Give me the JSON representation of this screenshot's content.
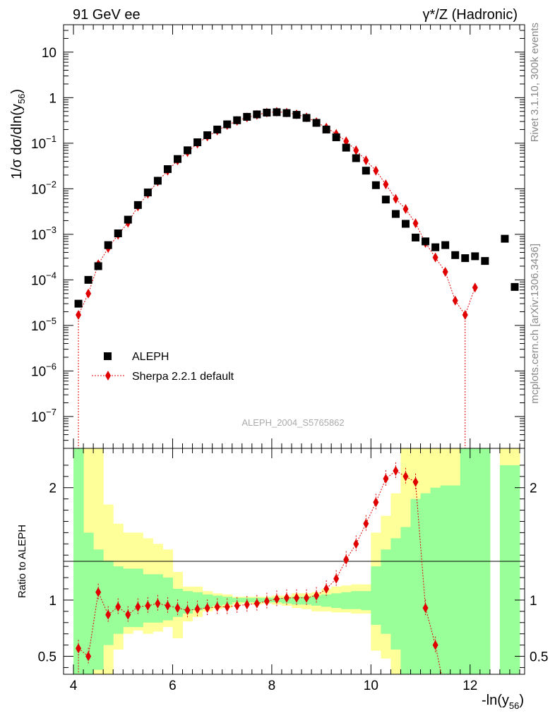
{
  "header": {
    "left": "91 GeV ee",
    "right": "γ*/Z (Hadronic)"
  },
  "side": {
    "rivet": "Rivet 3.1.10,  300k events",
    "mcplots": "mcplots.cern.ch [arXiv:1306.3436]"
  },
  "watermark": "ALEPH_2004_S5765862",
  "legend": {
    "data_label": "ALEPH",
    "mc_label": "Sherpa 2.2.1 default"
  },
  "colors": {
    "data": "#000000",
    "mc": "#e00000",
    "band_green": "#99ff99",
    "band_yellow": "#ffff99"
  },
  "chart_data": [
    {
      "type": "scatter",
      "ylabel_main": "1/σ  dσ/dln(y",
      "ylabel_sub": "56",
      "ylabel_end": ")",
      "yscale": "log",
      "xlim": [
        3.8,
        13.1
      ],
      "ylim": [
        2e-08,
        40
      ],
      "yticks": [
        {
          "value": 10,
          "label": "10"
        },
        {
          "value": 1,
          "label": "1"
        },
        {
          "value": 0.1,
          "label": "10",
          "exp": "−1"
        },
        {
          "value": 0.01,
          "label": "10",
          "exp": "−2"
        },
        {
          "value": 0.001,
          "label": "10",
          "exp": "−3"
        },
        {
          "value": 0.0001,
          "label": "10",
          "exp": "−4"
        },
        {
          "value": 1e-05,
          "label": "10",
          "exp": "−5"
        },
        {
          "value": 1e-06,
          "label": "10",
          "exp": "−6"
        },
        {
          "value": 1e-07,
          "label": "10",
          "exp": "−7"
        }
      ],
      "series": [
        {
          "name": "ALEPH",
          "x": [
            4.1,
            4.3,
            4.5,
            4.7,
            4.9,
            5.1,
            5.3,
            5.5,
            5.7,
            5.9,
            6.1,
            6.3,
            6.5,
            6.7,
            6.9,
            7.1,
            7.3,
            7.5,
            7.7,
            7.9,
            8.1,
            8.3,
            8.5,
            8.7,
            8.9,
            9.1,
            9.3,
            9.5,
            9.7,
            9.9,
            10.1,
            10.3,
            10.5,
            10.7,
            10.9,
            11.1,
            11.3,
            11.5,
            11.7,
            11.9,
            12.1,
            12.3,
            12.7,
            12.9
          ],
          "y": [
            3e-05,
            0.0001,
            0.0002,
            0.00058,
            0.00105,
            0.0021,
            0.0044,
            0.0083,
            0.015,
            0.027,
            0.045,
            0.07,
            0.105,
            0.15,
            0.2,
            0.26,
            0.32,
            0.38,
            0.43,
            0.47,
            0.48,
            0.46,
            0.42,
            0.36,
            0.28,
            0.2,
            0.135,
            0.08,
            0.047,
            0.025,
            0.012,
            0.0058,
            0.0028,
            0.0017,
            0.00085,
            0.0007,
            0.00052,
            0.00058,
            0.00035,
            0.0003,
            0.00033,
            0.00026,
            0.0008,
            7e-05
          ]
        },
        {
          "name": "Sherpa 2.2.1 default",
          "x": [
            4.1,
            4.3,
            4.5,
            4.7,
            4.9,
            5.1,
            5.3,
            5.5,
            5.7,
            5.9,
            6.1,
            6.3,
            6.5,
            6.7,
            6.9,
            7.1,
            7.3,
            7.5,
            7.7,
            7.9,
            8.1,
            8.3,
            8.5,
            8.7,
            8.9,
            9.1,
            9.3,
            9.5,
            9.7,
            9.9,
            10.1,
            10.3,
            10.5,
            10.7,
            10.9,
            11.1,
            11.3,
            11.5,
            11.7,
            11.9,
            12.1
          ],
          "y": [
            1.7e-05,
            5e-05,
            0.00022,
            0.0005,
            0.00098,
            0.0018,
            0.0041,
            0.0078,
            0.0145,
            0.025,
            0.042,
            0.064,
            0.098,
            0.14,
            0.19,
            0.25,
            0.31,
            0.37,
            0.42,
            0.47,
            0.49,
            0.47,
            0.43,
            0.37,
            0.29,
            0.22,
            0.16,
            0.11,
            0.07,
            0.042,
            0.025,
            0.0125,
            0.006,
            0.0036,
            0.00175,
            0.00065,
            0.00031,
            0.00015,
            3.5e-05,
            1.7e-05,
            6.8e-05
          ]
        }
      ]
    },
    {
      "type": "scatter",
      "xlabel": "-ln(y",
      "xlabel_sub": "56",
      "xlabel_end": ")",
      "ylabel": "Ratio to ALEPH",
      "xlim": [
        3.8,
        13.1
      ],
      "ylim": [
        0.34,
        2.35
      ],
      "xticks": [
        4,
        6,
        8,
        10,
        12
      ],
      "yticks": [
        0.5,
        1,
        2
      ],
      "series": [
        {
          "name": "Sherpa 2.2.1 default",
          "x": [
            4.1,
            4.3,
            4.5,
            4.7,
            4.9,
            5.1,
            5.3,
            5.5,
            5.7,
            5.9,
            6.1,
            6.3,
            6.5,
            6.7,
            6.9,
            7.1,
            7.3,
            7.5,
            7.7,
            7.9,
            8.1,
            8.3,
            8.5,
            8.7,
            8.9,
            9.1,
            9.3,
            9.5,
            9.7,
            9.9,
            10.1,
            10.3,
            10.5,
            10.7,
            10.9,
            11.1,
            11.3
          ],
          "y": [
            0.57,
            0.5,
            1.07,
            0.87,
            0.94,
            0.87,
            0.94,
            0.95,
            0.97,
            0.95,
            0.93,
            0.91,
            0.92,
            0.93,
            0.94,
            0.94,
            0.95,
            0.96,
            0.97,
            0.99,
            1.01,
            1.02,
            1.02,
            1.02,
            1.04,
            1.1,
            1.19,
            1.36,
            1.5,
            1.68,
            1.87,
            2.08,
            2.15,
            2.1,
            2.05,
            0.93,
            0.6
          ]
        }
      ],
      "bands": {
        "edges": [
          4.0,
          4.2,
          4.4,
          4.6,
          4.8,
          5.0,
          5.2,
          5.4,
          5.6,
          5.8,
          6.0,
          6.2,
          6.4,
          6.6,
          6.8,
          7.0,
          7.2,
          7.4,
          7.6,
          7.8,
          8.0,
          8.2,
          8.4,
          8.6,
          8.8,
          9.0,
          9.2,
          9.4,
          9.6,
          9.8,
          10.0,
          10.2,
          10.4,
          10.6,
          10.8,
          11.0,
          11.2,
          11.4,
          11.6,
          11.8,
          12.0,
          12.2,
          12.4,
          12.6,
          12.8,
          13.0
        ],
        "green_lo": [
          0.34,
          0.34,
          0.38,
          0.6,
          0.7,
          0.76,
          0.76,
          0.8,
          0.8,
          0.82,
          0.85,
          0.88,
          0.91,
          0.93,
          0.95,
          0.96,
          0.98,
          0.98,
          0.98,
          0.98,
          0.98,
          0.97,
          0.96,
          0.96,
          0.95,
          0.94,
          0.93,
          0.92,
          0.92,
          0.91,
          0.78,
          0.7,
          0.56,
          0.34,
          0.34,
          0.34,
          0.34,
          0.34,
          0.34,
          0.34,
          0.34,
          0.34,
          null,
          0.34,
          0.34
        ],
        "green_hi": [
          2.35,
          1.6,
          1.45,
          1.35,
          1.3,
          1.28,
          1.28,
          1.23,
          1.23,
          1.2,
          1.1,
          1.08,
          1.07,
          1.05,
          1.04,
          1.03,
          1.02,
          1.02,
          1.02,
          1.02,
          1.02,
          1.02,
          1.03,
          1.03,
          1.04,
          1.05,
          1.06,
          1.07,
          1.08,
          1.08,
          1.3,
          1.45,
          1.55,
          1.65,
          1.9,
          1.95,
          2.0,
          2.02,
          2.02,
          2.35,
          2.35,
          2.35,
          null,
          2.2,
          2.2
        ],
        "yellow_lo": [
          0.34,
          0.34,
          0.34,
          0.34,
          0.56,
          0.7,
          0.73,
          0.7,
          0.72,
          0.76,
          0.66,
          0.81,
          0.85,
          0.9,
          0.92,
          0.93,
          0.96,
          0.97,
          0.96,
          0.97,
          0.96,
          0.95,
          0.93,
          0.92,
          0.9,
          0.9,
          0.89,
          0.89,
          0.88,
          0.88,
          0.55,
          0.48,
          0.34,
          0.34,
          0.34,
          0.34,
          0.34,
          0.34,
          0.34,
          0.34,
          0.34,
          0.34,
          null,
          0.34,
          0.34
        ],
        "yellow_hi": [
          2.35,
          2.35,
          2.35,
          1.85,
          1.68,
          1.6,
          1.6,
          1.55,
          1.5,
          1.45,
          1.25,
          1.12,
          1.12,
          1.08,
          1.06,
          1.05,
          1.03,
          1.03,
          1.03,
          1.03,
          1.04,
          1.04,
          1.06,
          1.06,
          1.07,
          1.1,
          1.12,
          1.13,
          1.14,
          1.14,
          1.6,
          1.75,
          1.95,
          2.35,
          2.35,
          2.35,
          2.35,
          2.35,
          2.35,
          2.35,
          2.35,
          2.35,
          null,
          2.35,
          2.35
        ]
      }
    }
  ]
}
